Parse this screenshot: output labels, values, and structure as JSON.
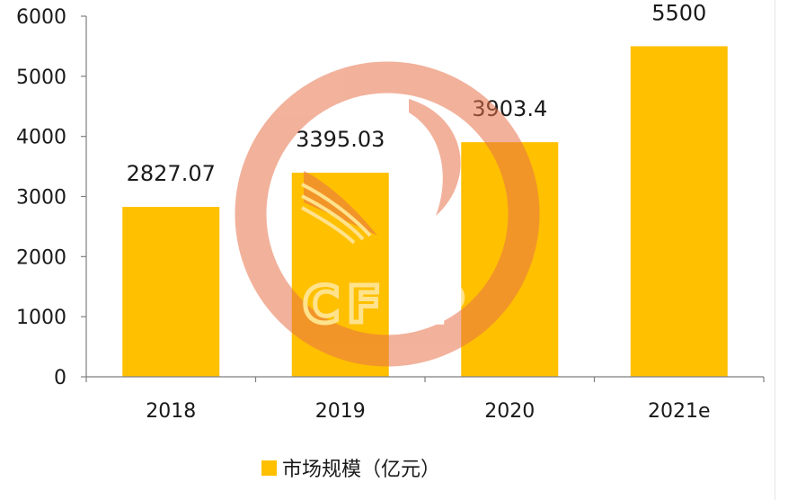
{
  "colors": {
    "bar": "#FFC000",
    "axis": "#7f7f7f",
    "watermark": "#E8724A"
  },
  "watermark": {
    "text": "CFLP"
  },
  "chart_data": {
    "type": "bar",
    "categories": [
      "2018",
      "2019",
      "2020",
      "2021e"
    ],
    "series": [
      {
        "name": "市场规模（亿元）",
        "values": [
          2827.07,
          3395.03,
          3903.4,
          5500
        ],
        "labels": [
          "2827.07",
          "3395.03",
          "3903.4",
          "5500"
        ]
      }
    ],
    "title": "",
    "xlabel": "",
    "ylabel": "",
    "ylim": [
      0,
      6000
    ],
    "yticks": [
      0,
      1000,
      2000,
      3000,
      4000,
      5000,
      6000
    ],
    "grid": false,
    "legend": "bottom"
  }
}
